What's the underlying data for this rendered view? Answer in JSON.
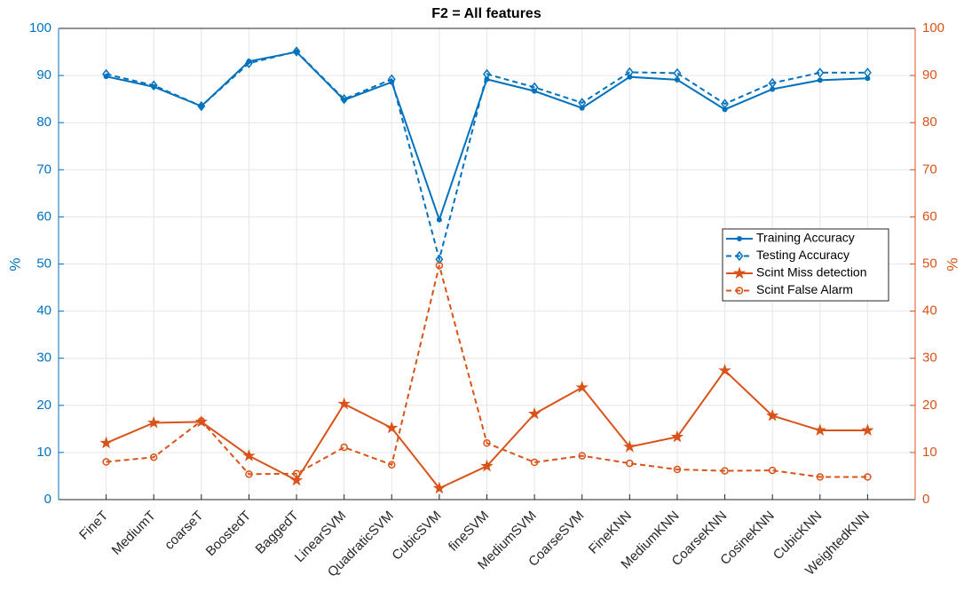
{
  "chart_data": {
    "type": "line",
    "title": "F2 = All features",
    "ylabel": "%",
    "y2label": "%",
    "categories": [
      "FineT",
      "MediumT",
      "coarseT",
      "BoostedT",
      "BaggedT",
      "LinearSVM",
      "QuadraticSVM",
      "CubicSVM",
      "fineSVM",
      "MediumSVM",
      "CoarseSVM",
      "FineKNN",
      "MediumKNN",
      "CoarseKNN",
      "CosineKNN",
      "CubicKNN",
      "WeightedKNN"
    ],
    "series": [
      {
        "name": "Training Accuracy",
        "color": "#0072bd",
        "linestyle": "solid",
        "marker": "dot",
        "values": [
          89.8,
          87.6,
          83.5,
          93,
          95,
          84.8,
          88.6,
          59.4,
          89.2,
          86.7,
          83.1,
          89.7,
          89.1,
          82.8,
          87.1,
          89,
          89.4
        ]
      },
      {
        "name": "Testing Accuracy",
        "color": "#0072bd",
        "linestyle": "dashed",
        "marker": "diamond",
        "values": [
          90.3,
          87.9,
          83.5,
          92.6,
          95.1,
          85,
          89.2,
          51,
          90.3,
          87.5,
          84.2,
          90.7,
          90.5,
          84,
          88.4,
          90.6,
          90.6
        ]
      },
      {
        "name": "Scint Miss detection",
        "color": "#d95319",
        "linestyle": "solid",
        "marker": "star",
        "axis": "y2",
        "values": [
          12,
          16.3,
          16.5,
          9.3,
          4.1,
          20.3,
          15.2,
          2.4,
          7.1,
          18.2,
          23.8,
          11.2,
          13.3,
          27.4,
          17.8,
          14.7,
          14.7
        ]
      },
      {
        "name": "Scint False Alarm",
        "color": "#d95319",
        "linestyle": "dashed",
        "marker": "circle",
        "axis": "y2",
        "values": [
          8,
          9,
          16.7,
          5.4,
          5.5,
          11.1,
          7.4,
          49.7,
          12,
          7.9,
          9.3,
          7.7,
          6.4,
          6.1,
          6.2,
          4.8,
          4.8
        ]
      }
    ],
    "ylim": [
      0,
      100
    ],
    "yticks": [
      0,
      10,
      20,
      30,
      40,
      50,
      60,
      70,
      80,
      90,
      100
    ],
    "y2lim": [
      0,
      100
    ],
    "y2ticks": [
      0,
      10,
      20,
      30,
      40,
      50,
      60,
      70,
      80,
      90,
      100
    ],
    "grid": true,
    "legend": "right"
  }
}
